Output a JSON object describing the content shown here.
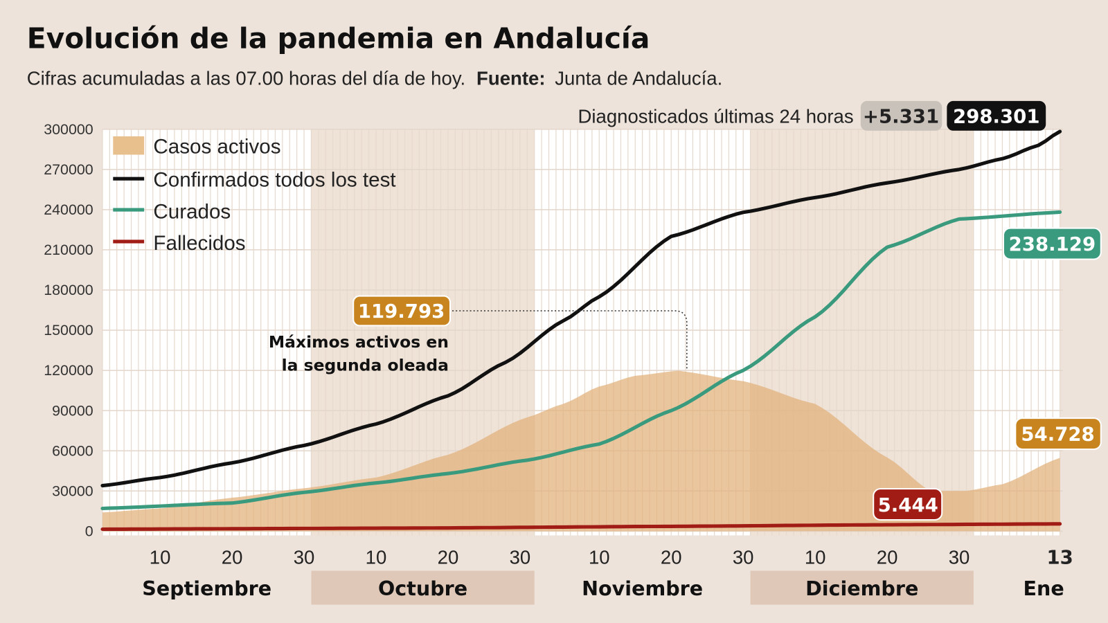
{
  "title": "Evolución de la pandemia en Andalucía",
  "subtitle_prefix": "Cifras acumuladas a las 07.00 horas del día de hoy.",
  "subtitle_source_label": "Fuente:",
  "subtitle_source": "Junta de Andalucía.",
  "diagnosed": {
    "label": "Diagnosticados últimas 24 horas",
    "delta": "+5.331",
    "total": "298.301"
  },
  "colors": {
    "background": "#ede3da",
    "activos": "#e2b07a",
    "confirmados": "#111111",
    "curados": "#3a9a7e",
    "fallecidos": "#a01c14",
    "badge_activos": "#c8841f",
    "badge_delta": "#c9c2bb"
  },
  "annotation": {
    "value": "119.793",
    "line1": "Máximos activos en",
    "line2": "la segunda oleada",
    "date": "2020-11-21"
  },
  "end_labels": {
    "curados": "238.129",
    "activos": "54.728",
    "fallecidos": "5.444"
  },
  "chart_data": {
    "type": "line",
    "ylim": [
      0,
      300000
    ],
    "xlim": [
      "2020-09-02",
      "2021-01-13"
    ],
    "grid": true,
    "legend_position": "top-left",
    "yticks": [
      "0",
      "30000",
      "60000",
      "90000",
      "120000",
      "150000",
      "180000",
      "210000",
      "240000",
      "270000",
      "300000"
    ],
    "xticks": [
      {
        "date": "2020-09-10",
        "label": "10"
      },
      {
        "date": "2020-09-20",
        "label": "20"
      },
      {
        "date": "2020-09-30",
        "label": "30"
      },
      {
        "date": "2020-10-10",
        "label": "10"
      },
      {
        "date": "2020-10-20",
        "label": "20"
      },
      {
        "date": "2020-10-30",
        "label": "30"
      },
      {
        "date": "2020-11-10",
        "label": "10"
      },
      {
        "date": "2020-11-20",
        "label": "20"
      },
      {
        "date": "2020-11-30",
        "label": "30"
      },
      {
        "date": "2020-12-10",
        "label": "10"
      },
      {
        "date": "2020-12-20",
        "label": "20"
      },
      {
        "date": "2020-12-30",
        "label": "30"
      },
      {
        "date": "2021-01-13",
        "label": "13",
        "bold": true
      }
    ],
    "months": [
      {
        "label": "Septiembre",
        "start": "2020-09-02",
        "end": "2020-10-01",
        "shaded": false
      },
      {
        "label": "Octubre",
        "start": "2020-10-01",
        "end": "2020-11-01",
        "shaded": true
      },
      {
        "label": "Noviembre",
        "start": "2020-11-01",
        "end": "2020-12-01",
        "shaded": false
      },
      {
        "label": "Diciembre",
        "start": "2020-12-01",
        "end": "2021-01-01",
        "shaded": true
      },
      {
        "label": "Ene",
        "start": "2021-01-01",
        "end": "2021-01-13",
        "shaded": false
      }
    ],
    "series": [
      {
        "name": "Casos activos",
        "kind": "area",
        "color": "#e2b07a",
        "points": [
          [
            "2020-09-02",
            14000
          ],
          [
            "2020-09-10",
            17000
          ],
          [
            "2020-09-20",
            25000
          ],
          [
            "2020-09-30",
            32000
          ],
          [
            "2020-10-10",
            40000
          ],
          [
            "2020-10-20",
            57000
          ],
          [
            "2020-10-31",
            85000
          ],
          [
            "2020-11-05",
            95000
          ],
          [
            "2020-11-10",
            108000
          ],
          [
            "2020-11-15",
            116000
          ],
          [
            "2020-11-21",
            119793
          ],
          [
            "2020-11-30",
            112000
          ],
          [
            "2020-12-10",
            95000
          ],
          [
            "2020-12-20",
            55000
          ],
          [
            "2020-12-26",
            30000
          ],
          [
            "2020-12-31",
            30000
          ],
          [
            "2021-01-05",
            35000
          ],
          [
            "2021-01-13",
            54728
          ]
        ]
      },
      {
        "name": "Confirmados todos los test",
        "kind": "line",
        "color": "#111111",
        "points": [
          [
            "2020-09-02",
            34000
          ],
          [
            "2020-09-10",
            40000
          ],
          [
            "2020-09-20",
            51000
          ],
          [
            "2020-09-30",
            64000
          ],
          [
            "2020-10-10",
            80000
          ],
          [
            "2020-10-20",
            101000
          ],
          [
            "2020-10-28",
            126000
          ],
          [
            "2020-11-05",
            157000
          ],
          [
            "2020-11-10",
            175000
          ],
          [
            "2020-11-20",
            220000
          ],
          [
            "2020-11-30",
            238000
          ],
          [
            "2020-12-10",
            249000
          ],
          [
            "2020-12-20",
            260000
          ],
          [
            "2020-12-30",
            270000
          ],
          [
            "2021-01-05",
            278000
          ],
          [
            "2021-01-10",
            288000
          ],
          [
            "2021-01-13",
            298301
          ]
        ]
      },
      {
        "name": "Curados",
        "kind": "line",
        "color": "#3a9a7e",
        "points": [
          [
            "2020-09-02",
            17000
          ],
          [
            "2020-09-20",
            21000
          ],
          [
            "2020-09-30",
            29000
          ],
          [
            "2020-10-10",
            36000
          ],
          [
            "2020-10-20",
            43000
          ],
          [
            "2020-10-31",
            53000
          ],
          [
            "2020-11-10",
            65000
          ],
          [
            "2020-11-20",
            90000
          ],
          [
            "2020-11-30",
            120000
          ],
          [
            "2020-12-10",
            160000
          ],
          [
            "2020-12-20",
            212000
          ],
          [
            "2020-12-30",
            233000
          ],
          [
            "2021-01-13",
            238129
          ]
        ]
      },
      {
        "name": "Fallecidos",
        "kind": "line",
        "color": "#a01c14",
        "points": [
          [
            "2020-09-02",
            1500
          ],
          [
            "2020-10-15",
            2300
          ],
          [
            "2020-11-20",
            3600
          ],
          [
            "2020-12-20",
            4800
          ],
          [
            "2021-01-13",
            5444
          ]
        ]
      }
    ]
  }
}
